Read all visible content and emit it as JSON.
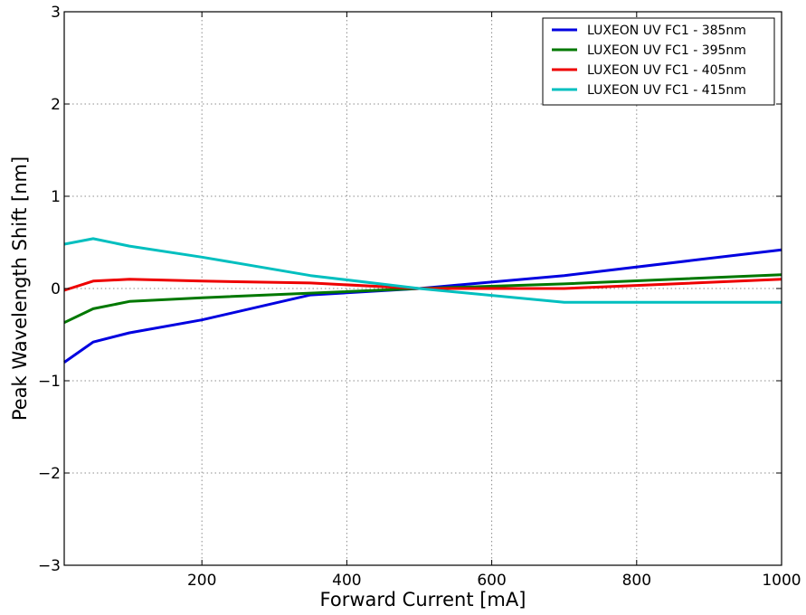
{
  "chart_data": {
    "type": "line",
    "xlabel": "Forward Current [mA]",
    "ylabel": "Peak Wavelength Shift [nm]",
    "xlim": [
      10,
      1000
    ],
    "ylim": [
      -3,
      3
    ],
    "xticks": [
      200,
      400,
      600,
      800,
      1000
    ],
    "xtick_labels": [
      "200",
      "400",
      "600",
      "800",
      "1000"
    ],
    "yticks": [
      -3,
      -2,
      -1,
      0,
      1,
      2,
      3
    ],
    "ytick_labels": [
      "−3",
      "−2",
      "−1",
      "0",
      "1",
      "2",
      "3"
    ],
    "grid": true,
    "legend_position": "top-right",
    "series": [
      {
        "name": "LUXEON UV FC1 - 385nm",
        "color": "#0000e0",
        "x": [
          10,
          50,
          100,
          200,
          350,
          500,
          700,
          1000
        ],
        "y": [
          -0.8,
          -0.58,
          -0.48,
          -0.34,
          -0.07,
          0.0,
          0.14,
          0.42
        ]
      },
      {
        "name": "LUXEON UV FC1 - 395nm",
        "color": "#007800",
        "x": [
          10,
          50,
          100,
          200,
          350,
          500,
          700,
          1000
        ],
        "y": [
          -0.37,
          -0.22,
          -0.14,
          -0.1,
          -0.05,
          0.0,
          0.05,
          0.15
        ]
      },
      {
        "name": "LUXEON UV FC1 - 405nm",
        "color": "#ee0000",
        "x": [
          10,
          50,
          100,
          200,
          350,
          500,
          700,
          1000
        ],
        "y": [
          -0.02,
          0.08,
          0.1,
          0.08,
          0.06,
          0.0,
          0.0,
          0.1
        ]
      },
      {
        "name": "LUXEON UV FC1 - 415nm",
        "color": "#00bfbf",
        "x": [
          10,
          50,
          100,
          200,
          350,
          500,
          700,
          1000
        ],
        "y": [
          0.48,
          0.54,
          0.46,
          0.34,
          0.14,
          0.0,
          -0.15,
          -0.15
        ]
      }
    ]
  }
}
